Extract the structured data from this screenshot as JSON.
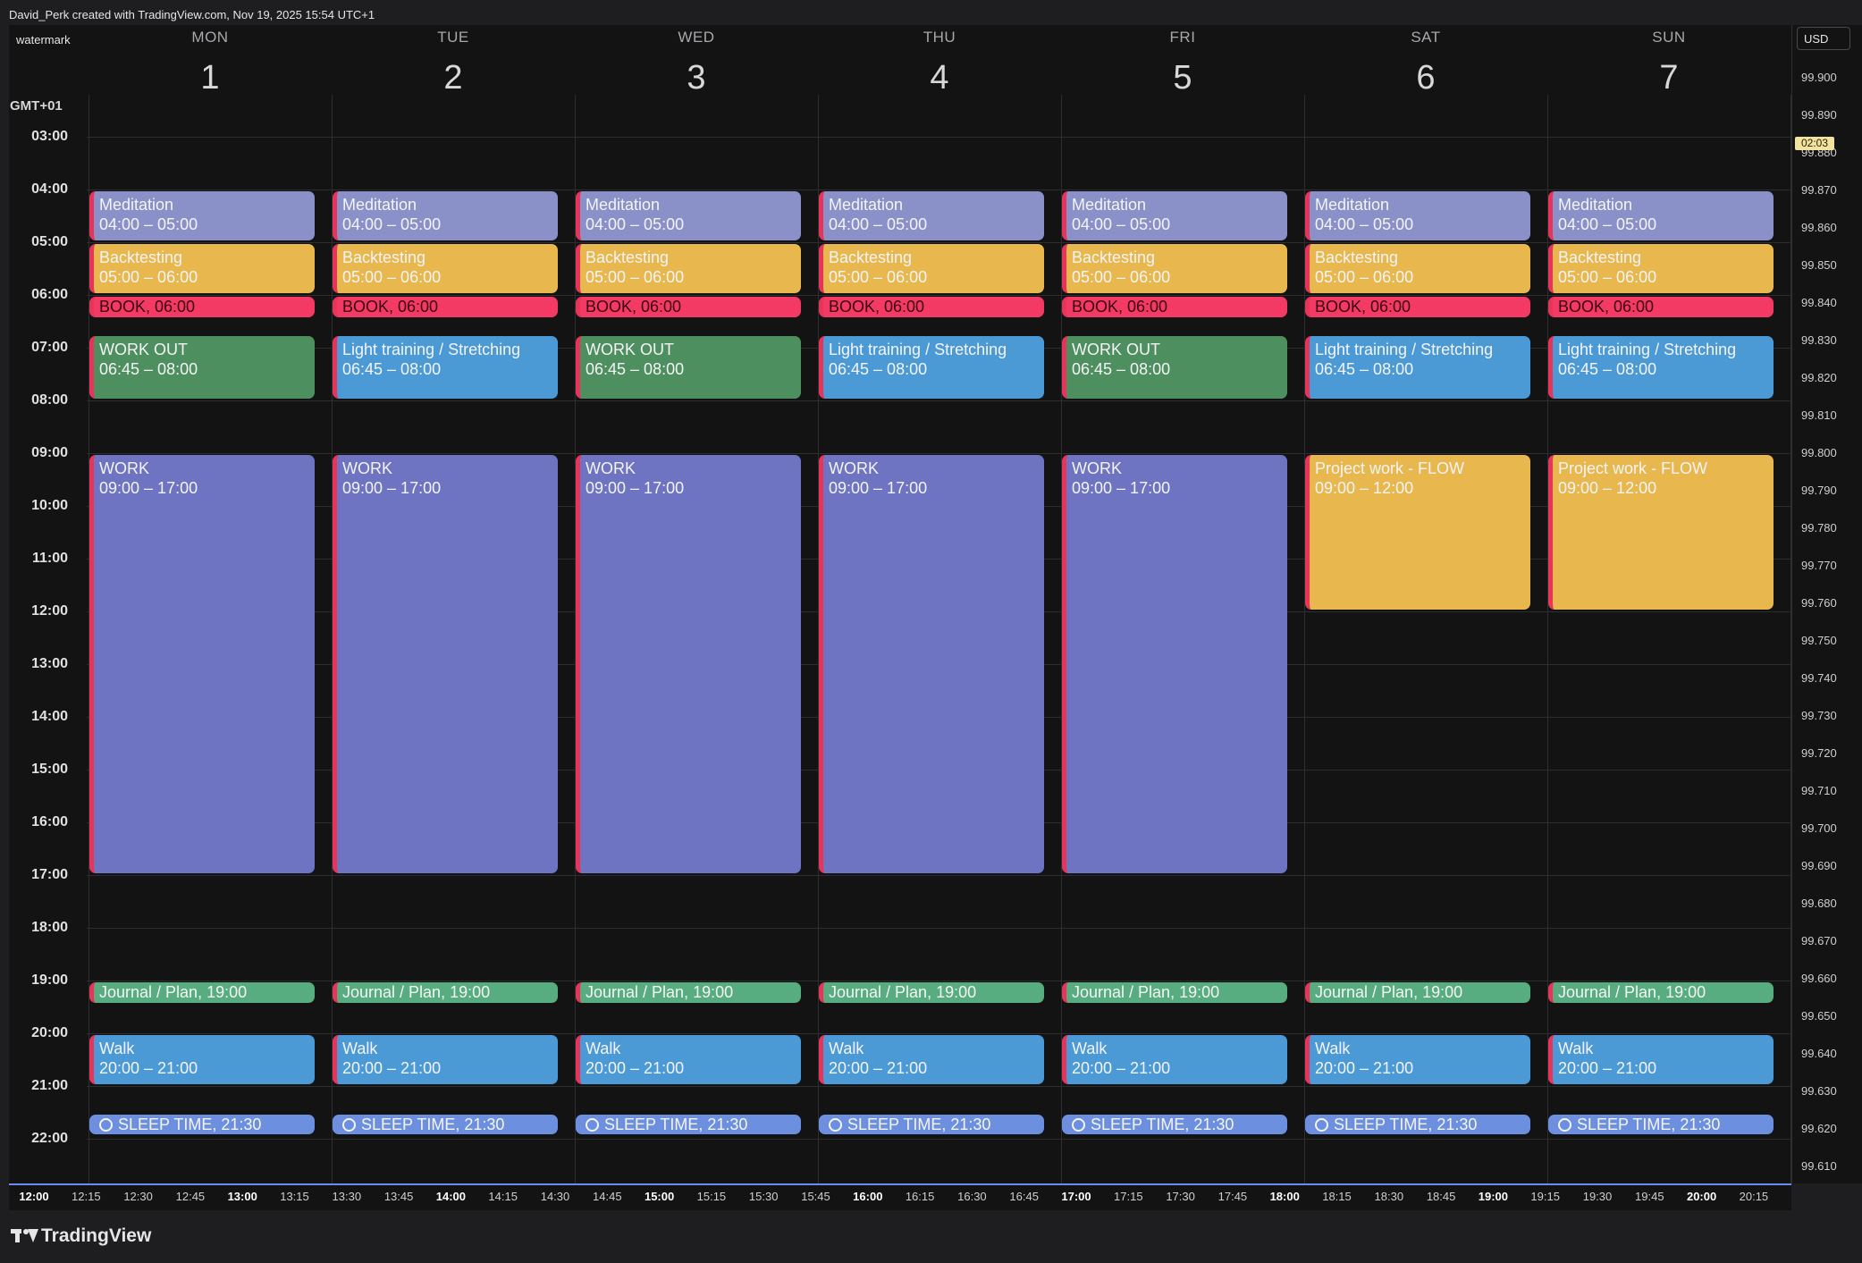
{
  "header": {
    "credit": "David_Perk created with TradingView.com, Nov 19, 2025 15:54 UTC+1",
    "watermark": "watermark"
  },
  "calendar": {
    "timezone": "GMT+01",
    "days": [
      {
        "name": "MON",
        "num": "1"
      },
      {
        "name": "TUE",
        "num": "2"
      },
      {
        "name": "WED",
        "num": "3"
      },
      {
        "name": "THU",
        "num": "4"
      },
      {
        "name": "FRI",
        "num": "5"
      },
      {
        "name": "SAT",
        "num": "6"
      },
      {
        "name": "SUN",
        "num": "7"
      }
    ],
    "hours": [
      "03:00",
      "04:00",
      "05:00",
      "06:00",
      "07:00",
      "08:00",
      "09:00",
      "10:00",
      "11:00",
      "12:00",
      "13:00",
      "14:00",
      "15:00",
      "16:00",
      "17:00",
      "18:00",
      "19:00",
      "20:00",
      "21:00",
      "22:00"
    ],
    "events": [
      {
        "day": 0,
        "title": "Meditation",
        "sub": "04:00 – 05:00",
        "start": 4.0,
        "end": 5.0,
        "color": "#8a90c8",
        "kind": "block"
      },
      {
        "day": 0,
        "title": "Backtesting",
        "sub": "05:00 – 06:00",
        "start": 5.0,
        "end": 6.0,
        "color": "#e8b84e",
        "kind": "block"
      },
      {
        "day": 0,
        "title": "BOOK, 06:00",
        "sub": "",
        "start": 6.0,
        "end": 6.45,
        "color": "#f23a64",
        "kind": "book"
      },
      {
        "day": 0,
        "title": "WORK OUT",
        "sub": "06:45 – 08:00",
        "start": 6.75,
        "end": 8.0,
        "color": "#4d8f5f",
        "kind": "block"
      },
      {
        "day": 0,
        "title": "WORK",
        "sub": "09:00 – 17:00",
        "start": 9.0,
        "end": 17.0,
        "color": "#6f74c2",
        "kind": "block"
      },
      {
        "day": 0,
        "title": "Journal / Plan, 19:00",
        "sub": "",
        "start": 19.0,
        "end": 19.45,
        "color": "#57ad7f",
        "kind": "slim"
      },
      {
        "day": 0,
        "title": "Walk",
        "sub": "20:00 – 21:00",
        "start": 20.0,
        "end": 21.0,
        "color": "#4b9ad6",
        "kind": "block"
      },
      {
        "day": 0,
        "title": "SLEEP TIME, 21:30",
        "sub": "",
        "start": 21.5,
        "end": 21.95,
        "color": "#6d8fe0",
        "kind": "sleep"
      },
      {
        "day": 1,
        "title": "Meditation",
        "sub": "04:00 – 05:00",
        "start": 4.0,
        "end": 5.0,
        "color": "#8a90c8",
        "kind": "block"
      },
      {
        "day": 1,
        "title": "Backtesting",
        "sub": "05:00 – 06:00",
        "start": 5.0,
        "end": 6.0,
        "color": "#e8b84e",
        "kind": "block"
      },
      {
        "day": 1,
        "title": "BOOK, 06:00",
        "sub": "",
        "start": 6.0,
        "end": 6.45,
        "color": "#f23a64",
        "kind": "book"
      },
      {
        "day": 1,
        "title": "Light training / Stretching",
        "sub": "06:45 – 08:00",
        "start": 6.75,
        "end": 8.0,
        "color": "#4b9ad6",
        "kind": "block"
      },
      {
        "day": 1,
        "title": "WORK",
        "sub": "09:00 – 17:00",
        "start": 9.0,
        "end": 17.0,
        "color": "#6f74c2",
        "kind": "block"
      },
      {
        "day": 1,
        "title": "Journal / Plan, 19:00",
        "sub": "",
        "start": 19.0,
        "end": 19.45,
        "color": "#57ad7f",
        "kind": "slim"
      },
      {
        "day": 1,
        "title": "Walk",
        "sub": "20:00 – 21:00",
        "start": 20.0,
        "end": 21.0,
        "color": "#4b9ad6",
        "kind": "block"
      },
      {
        "day": 1,
        "title": "SLEEP TIME, 21:30",
        "sub": "",
        "start": 21.5,
        "end": 21.95,
        "color": "#6d8fe0",
        "kind": "sleep"
      },
      {
        "day": 2,
        "title": "Meditation",
        "sub": "04:00 – 05:00",
        "start": 4.0,
        "end": 5.0,
        "color": "#8a90c8",
        "kind": "block"
      },
      {
        "day": 2,
        "title": "Backtesting",
        "sub": "05:00 – 06:00",
        "start": 5.0,
        "end": 6.0,
        "color": "#e8b84e",
        "kind": "block"
      },
      {
        "day": 2,
        "title": "BOOK, 06:00",
        "sub": "",
        "start": 6.0,
        "end": 6.45,
        "color": "#f23a64",
        "kind": "book"
      },
      {
        "day": 2,
        "title": "WORK OUT",
        "sub": "06:45 – 08:00",
        "start": 6.75,
        "end": 8.0,
        "color": "#4d8f5f",
        "kind": "block"
      },
      {
        "day": 2,
        "title": "WORK",
        "sub": "09:00 – 17:00",
        "start": 9.0,
        "end": 17.0,
        "color": "#6f74c2",
        "kind": "block"
      },
      {
        "day": 2,
        "title": "Journal / Plan, 19:00",
        "sub": "",
        "start": 19.0,
        "end": 19.45,
        "color": "#57ad7f",
        "kind": "slim"
      },
      {
        "day": 2,
        "title": "Walk",
        "sub": "20:00 – 21:00",
        "start": 20.0,
        "end": 21.0,
        "color": "#4b9ad6",
        "kind": "block"
      },
      {
        "day": 2,
        "title": "SLEEP TIME, 21:30",
        "sub": "",
        "start": 21.5,
        "end": 21.95,
        "color": "#6d8fe0",
        "kind": "sleep"
      },
      {
        "day": 3,
        "title": "Meditation",
        "sub": "04:00 – 05:00",
        "start": 4.0,
        "end": 5.0,
        "color": "#8a90c8",
        "kind": "block"
      },
      {
        "day": 3,
        "title": "Backtesting",
        "sub": "05:00 – 06:00",
        "start": 5.0,
        "end": 6.0,
        "color": "#e8b84e",
        "kind": "block"
      },
      {
        "day": 3,
        "title": "BOOK, 06:00",
        "sub": "",
        "start": 6.0,
        "end": 6.45,
        "color": "#f23a64",
        "kind": "book"
      },
      {
        "day": 3,
        "title": "Light training / Stretching",
        "sub": "06:45 – 08:00",
        "start": 6.75,
        "end": 8.0,
        "color": "#4b9ad6",
        "kind": "block"
      },
      {
        "day": 3,
        "title": "WORK",
        "sub": "09:00 – 17:00",
        "start": 9.0,
        "end": 17.0,
        "color": "#6f74c2",
        "kind": "block"
      },
      {
        "day": 3,
        "title": "Journal / Plan, 19:00",
        "sub": "",
        "start": 19.0,
        "end": 19.45,
        "color": "#57ad7f",
        "kind": "slim"
      },
      {
        "day": 3,
        "title": "Walk",
        "sub": "20:00 – 21:00",
        "start": 20.0,
        "end": 21.0,
        "color": "#4b9ad6",
        "kind": "block"
      },
      {
        "day": 3,
        "title": "SLEEP TIME, 21:30",
        "sub": "",
        "start": 21.5,
        "end": 21.95,
        "color": "#6d8fe0",
        "kind": "sleep"
      },
      {
        "day": 4,
        "title": "Meditation",
        "sub": "04:00 – 05:00",
        "start": 4.0,
        "end": 5.0,
        "color": "#8a90c8",
        "kind": "block"
      },
      {
        "day": 4,
        "title": "Backtesting",
        "sub": "05:00 – 06:00",
        "start": 5.0,
        "end": 6.0,
        "color": "#e8b84e",
        "kind": "block"
      },
      {
        "day": 4,
        "title": "BOOK, 06:00",
        "sub": "",
        "start": 6.0,
        "end": 6.45,
        "color": "#f23a64",
        "kind": "book"
      },
      {
        "day": 4,
        "title": "WORK OUT",
        "sub": "06:45 – 08:00",
        "start": 6.75,
        "end": 8.0,
        "color": "#4d8f5f",
        "kind": "block"
      },
      {
        "day": 4,
        "title": "WORK",
        "sub": "09:00 – 17:00",
        "start": 9.0,
        "end": 17.0,
        "color": "#6f74c2",
        "kind": "block"
      },
      {
        "day": 4,
        "title": "Journal / Plan, 19:00",
        "sub": "",
        "start": 19.0,
        "end": 19.45,
        "color": "#57ad7f",
        "kind": "slim"
      },
      {
        "day": 4,
        "title": "Walk",
        "sub": "20:00 – 21:00",
        "start": 20.0,
        "end": 21.0,
        "color": "#4b9ad6",
        "kind": "block"
      },
      {
        "day": 4,
        "title": "SLEEP TIME, 21:30",
        "sub": "",
        "start": 21.5,
        "end": 21.95,
        "color": "#6d8fe0",
        "kind": "sleep"
      },
      {
        "day": 5,
        "title": "Meditation",
        "sub": "04:00 – 05:00",
        "start": 4.0,
        "end": 5.0,
        "color": "#8a90c8",
        "kind": "block"
      },
      {
        "day": 5,
        "title": "Backtesting",
        "sub": "05:00 – 06:00",
        "start": 5.0,
        "end": 6.0,
        "color": "#e8b84e",
        "kind": "block"
      },
      {
        "day": 5,
        "title": "BOOK, 06:00",
        "sub": "",
        "start": 6.0,
        "end": 6.45,
        "color": "#f23a64",
        "kind": "book"
      },
      {
        "day": 5,
        "title": "Light training / Stretching",
        "sub": "06:45 – 08:00",
        "start": 6.75,
        "end": 8.0,
        "color": "#4b9ad6",
        "kind": "block"
      },
      {
        "day": 5,
        "title": "Project work - FLOW",
        "sub": "09:00 – 12:00",
        "start": 9.0,
        "end": 12.0,
        "color": "#e8b84e",
        "kind": "block"
      },
      {
        "day": 5,
        "title": "Journal / Plan, 19:00",
        "sub": "",
        "start": 19.0,
        "end": 19.45,
        "color": "#57ad7f",
        "kind": "slim"
      },
      {
        "day": 5,
        "title": "Walk",
        "sub": "20:00 – 21:00",
        "start": 20.0,
        "end": 21.0,
        "color": "#4b9ad6",
        "kind": "block"
      },
      {
        "day": 5,
        "title": "SLEEP TIME, 21:30",
        "sub": "",
        "start": 21.5,
        "end": 21.95,
        "color": "#6d8fe0",
        "kind": "sleep"
      },
      {
        "day": 6,
        "title": "Meditation",
        "sub": "04:00 – 05:00",
        "start": 4.0,
        "end": 5.0,
        "color": "#8a90c8",
        "kind": "block"
      },
      {
        "day": 6,
        "title": "Backtesting",
        "sub": "05:00 – 06:00",
        "start": 5.0,
        "end": 6.0,
        "color": "#e8b84e",
        "kind": "block"
      },
      {
        "day": 6,
        "title": "BOOK, 06:00",
        "sub": "",
        "start": 6.0,
        "end": 6.45,
        "color": "#f23a64",
        "kind": "book"
      },
      {
        "day": 6,
        "title": "Light training / Stretching",
        "sub": "06:45 – 08:00",
        "start": 6.75,
        "end": 8.0,
        "color": "#4b9ad6",
        "kind": "block"
      },
      {
        "day": 6,
        "title": "Project work - FLOW",
        "sub": "09:00 – 12:00",
        "start": 9.0,
        "end": 12.0,
        "color": "#e8b84e",
        "kind": "block"
      },
      {
        "day": 6,
        "title": "Journal / Plan, 19:00",
        "sub": "",
        "start": 19.0,
        "end": 19.45,
        "color": "#57ad7f",
        "kind": "slim"
      },
      {
        "day": 6,
        "title": "Walk",
        "sub": "20:00 – 21:00",
        "start": 20.0,
        "end": 21.0,
        "color": "#4b9ad6",
        "kind": "block"
      },
      {
        "day": 6,
        "title": "SLEEP TIME, 21:30",
        "sub": "",
        "start": 21.5,
        "end": 21.95,
        "color": "#6d8fe0",
        "kind": "sleep"
      }
    ]
  },
  "price_axis": {
    "currency": "USD",
    "current_tag": "02:03",
    "labels": [
      "99.900",
      "99.890",
      "99.880",
      "99.870",
      "99.860",
      "99.850",
      "99.840",
      "99.830",
      "99.820",
      "99.810",
      "99.800",
      "99.790",
      "99.780",
      "99.770",
      "99.760",
      "99.750",
      "99.740",
      "99.730",
      "99.720",
      "99.710",
      "99.700",
      "99.690",
      "99.680",
      "99.670",
      "99.660",
      "99.650",
      "99.640",
      "99.630",
      "99.620",
      "99.610"
    ]
  },
  "time_axis": {
    "ticks": [
      {
        "label": "12:00",
        "major": true
      },
      {
        "label": "12:15",
        "major": false
      },
      {
        "label": "12:30",
        "major": false
      },
      {
        "label": "12:45",
        "major": false
      },
      {
        "label": "13:00",
        "major": true
      },
      {
        "label": "13:15",
        "major": false
      },
      {
        "label": "13:30",
        "major": false
      },
      {
        "label": "13:45",
        "major": false
      },
      {
        "label": "14:00",
        "major": true
      },
      {
        "label": "14:15",
        "major": false
      },
      {
        "label": "14:30",
        "major": false
      },
      {
        "label": "14:45",
        "major": false
      },
      {
        "label": "15:00",
        "major": true
      },
      {
        "label": "15:15",
        "major": false
      },
      {
        "label": "15:30",
        "major": false
      },
      {
        "label": "15:45",
        "major": false
      },
      {
        "label": "16:00",
        "major": true
      },
      {
        "label": "16:15",
        "major": false
      },
      {
        "label": "16:30",
        "major": false
      },
      {
        "label": "16:45",
        "major": false
      },
      {
        "label": "17:00",
        "major": true
      },
      {
        "label": "17:15",
        "major": false
      },
      {
        "label": "17:30",
        "major": false
      },
      {
        "label": "17:45",
        "major": false
      },
      {
        "label": "18:00",
        "major": true
      },
      {
        "label": "18:15",
        "major": false
      },
      {
        "label": "18:30",
        "major": false
      },
      {
        "label": "18:45",
        "major": false
      },
      {
        "label": "19:00",
        "major": true
      },
      {
        "label": "19:15",
        "major": false
      },
      {
        "label": "19:30",
        "major": false
      },
      {
        "label": "19:45",
        "major": false
      },
      {
        "label": "20:00",
        "major": true
      },
      {
        "label": "20:15",
        "major": false
      }
    ]
  },
  "footer": {
    "brand": "TradingView"
  }
}
